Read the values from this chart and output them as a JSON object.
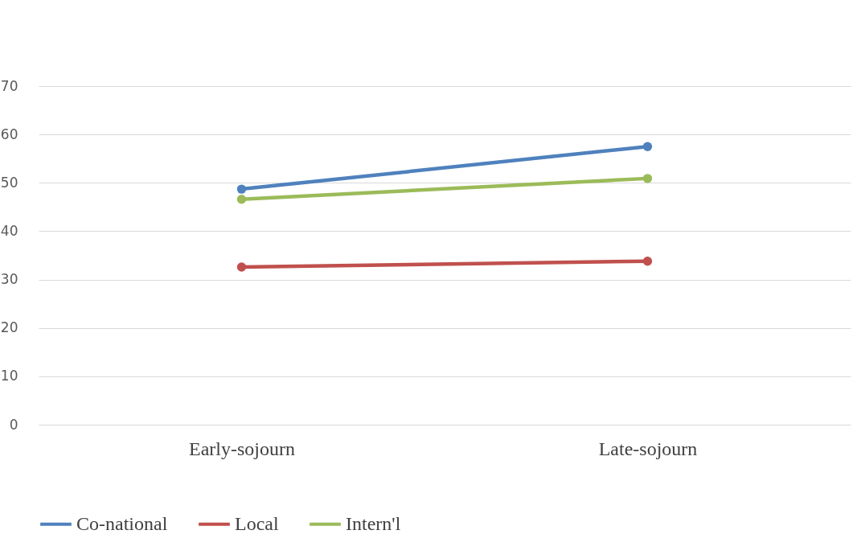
{
  "chart_data": {
    "type": "line",
    "categories": [
      "Early-sojourn",
      "Late-sojourn"
    ],
    "series": [
      {
        "name": "Co-national",
        "color": "#4f81bd",
        "values": [
          48.7,
          57.5
        ]
      },
      {
        "name": "Local",
        "color": "#c0504d",
        "values": [
          32.6,
          33.8
        ]
      },
      {
        "name": "Intern'l",
        "color": "#9bbb59",
        "values": [
          46.6,
          50.9
        ]
      }
    ],
    "ylim": [
      0,
      70
    ],
    "yticks": [
      0,
      10,
      20,
      30,
      40,
      50,
      60,
      70
    ],
    "grid": "y",
    "legend": "bottom",
    "marker": "circle",
    "line_style": "solid"
  }
}
